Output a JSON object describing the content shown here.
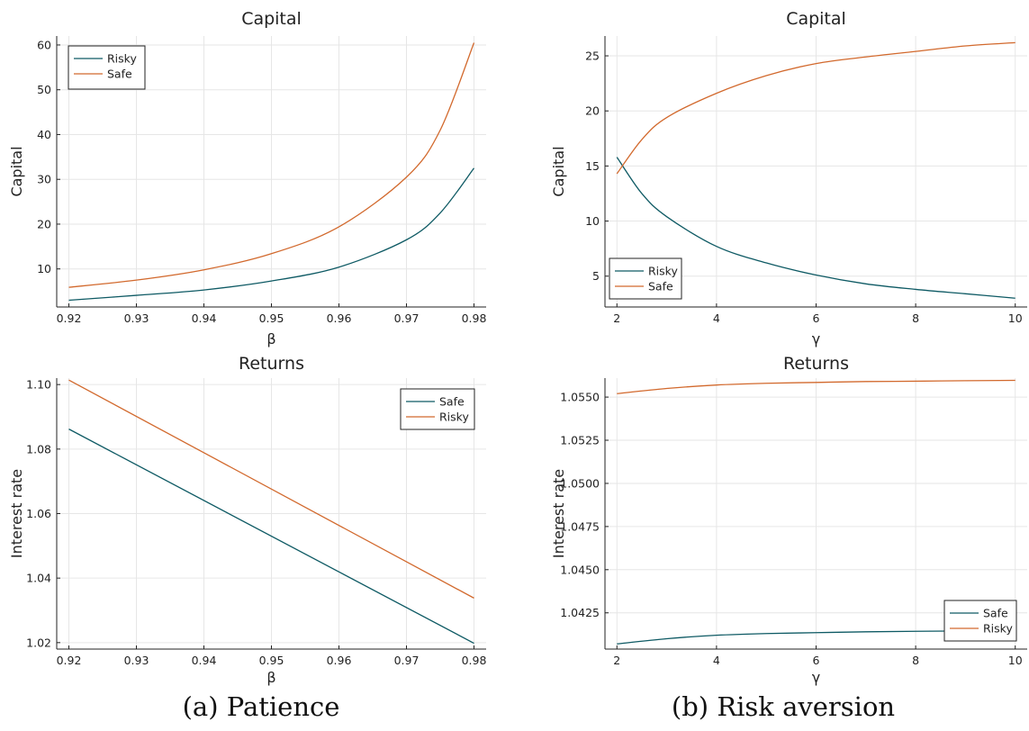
{
  "colors": {
    "teal": "#0e5a64",
    "orange": "#d2692d"
  },
  "captions": {
    "left": "(a) Patience",
    "right": "(b) Risk aversion"
  },
  "chart_data": [
    {
      "type": "line",
      "title": "Capital",
      "xlabel": "β",
      "ylabel": "Capital",
      "xlim": [
        0.92,
        0.98
      ],
      "ylim": [
        1.5,
        62
      ],
      "xticks": [
        0.92,
        0.93,
        0.94,
        0.95,
        0.96,
        0.97,
        0.98
      ],
      "xtick_labels": [
        "0.92",
        "0.93",
        "0.94",
        "0.95",
        "0.96",
        "0.97",
        "0.98"
      ],
      "yticks": [
        10,
        20,
        30,
        40,
        50,
        60
      ],
      "ytick_labels": [
        "10",
        "20",
        "30",
        "40",
        "50",
        "60"
      ],
      "grid": true,
      "legend_position": "top-left",
      "series": [
        {
          "name": "Risky",
          "color": "#0e5a64",
          "x": [
            0.92,
            0.93,
            0.94,
            0.95,
            0.96,
            0.97,
            0.975,
            0.98
          ],
          "y": [
            3.0,
            4.1,
            5.3,
            7.3,
            10.4,
            16.5,
            22.5,
            32.5
          ]
        },
        {
          "name": "Safe",
          "color": "#d2692d",
          "x": [
            0.92,
            0.93,
            0.94,
            0.95,
            0.96,
            0.97,
            0.975,
            0.98
          ],
          "y": [
            5.9,
            7.5,
            9.8,
            13.4,
            19.4,
            30.5,
            41.0,
            60.5
          ]
        }
      ]
    },
    {
      "type": "line",
      "title": "Capital",
      "xlabel": "γ",
      "ylabel": "Capital",
      "xlim": [
        2,
        10
      ],
      "ylim": [
        2.2,
        26.8
      ],
      "xticks": [
        2,
        4,
        6,
        8,
        10
      ],
      "xtick_labels": [
        "2",
        "4",
        "6",
        "8",
        "10"
      ],
      "yticks": [
        5,
        10,
        15,
        20,
        25
      ],
      "ytick_labels": [
        "5",
        "10",
        "15",
        "20",
        "25"
      ],
      "grid": true,
      "legend_position": "bottom-left",
      "series": [
        {
          "name": "Risky",
          "color": "#0e5a64",
          "x": [
            2,
            2.5,
            3,
            4,
            5,
            6,
            7,
            8,
            9,
            10
          ],
          "y": [
            15.8,
            12.5,
            10.4,
            7.7,
            6.2,
            5.1,
            4.3,
            3.8,
            3.4,
            3.0
          ]
        },
        {
          "name": "Safe",
          "color": "#d2692d",
          "x": [
            2,
            2.5,
            3,
            4,
            5,
            6,
            7,
            8,
            9,
            10
          ],
          "y": [
            14.3,
            17.4,
            19.4,
            21.6,
            23.2,
            24.3,
            24.9,
            25.4,
            25.9,
            26.2
          ]
        }
      ]
    },
    {
      "type": "line",
      "title": "Returns",
      "xlabel": "β",
      "ylabel": "Interest rate",
      "xlim": [
        0.92,
        0.98
      ],
      "ylim": [
        1.018,
        1.102
      ],
      "xticks": [
        0.92,
        0.93,
        0.94,
        0.95,
        0.96,
        0.97,
        0.98
      ],
      "xtick_labels": [
        "0.92",
        "0.93",
        "0.94",
        "0.95",
        "0.96",
        "0.97",
        "0.98"
      ],
      "yticks": [
        1.02,
        1.04,
        1.06,
        1.08,
        1.1
      ],
      "ytick_labels": [
        "1.02",
        "1.04",
        "1.06",
        "1.08",
        "1.10"
      ],
      "grid": true,
      "legend_position": "top-right",
      "series": [
        {
          "name": "Safe",
          "color": "#0e5a64",
          "x": [
            0.92,
            0.98
          ],
          "y": [
            1.0862,
            1.0198
          ]
        },
        {
          "name": "Risky",
          "color": "#d2692d",
          "x": [
            0.92,
            0.98
          ],
          "y": [
            1.1014,
            1.0338
          ]
        }
      ]
    },
    {
      "type": "line",
      "title": "Returns",
      "xlabel": "γ",
      "ylabel": "Interest rate",
      "xlim": [
        2,
        10
      ],
      "ylim": [
        1.0404,
        1.0561
      ],
      "xticks": [
        2,
        4,
        6,
        8,
        10
      ],
      "xtick_labels": [
        "2",
        "4",
        "6",
        "8",
        "10"
      ],
      "yticks": [
        1.0425,
        1.045,
        1.0475,
        1.05,
        1.0525,
        1.055
      ],
      "ytick_labels": [
        "1.0425",
        "1.0450",
        "1.0475",
        "1.0500",
        "1.0525",
        "1.0550"
      ],
      "grid": true,
      "legend_position": "bottom-right",
      "series": [
        {
          "name": "Safe",
          "color": "#0e5a64",
          "x": [
            2,
            3,
            4,
            5,
            6,
            7,
            8,
            9,
            10
          ],
          "y": [
            1.0407,
            1.041,
            1.0412,
            1.0413,
            1.04135,
            1.0414,
            1.04143,
            1.04145,
            1.04147
          ]
        },
        {
          "name": "Risky",
          "color": "#d2692d",
          "x": [
            2,
            3,
            4,
            5,
            6,
            7,
            8,
            9,
            10
          ],
          "y": [
            1.0552,
            1.0555,
            1.0557,
            1.0558,
            1.05585,
            1.0559,
            1.05592,
            1.05595,
            1.05597
          ]
        }
      ]
    }
  ]
}
